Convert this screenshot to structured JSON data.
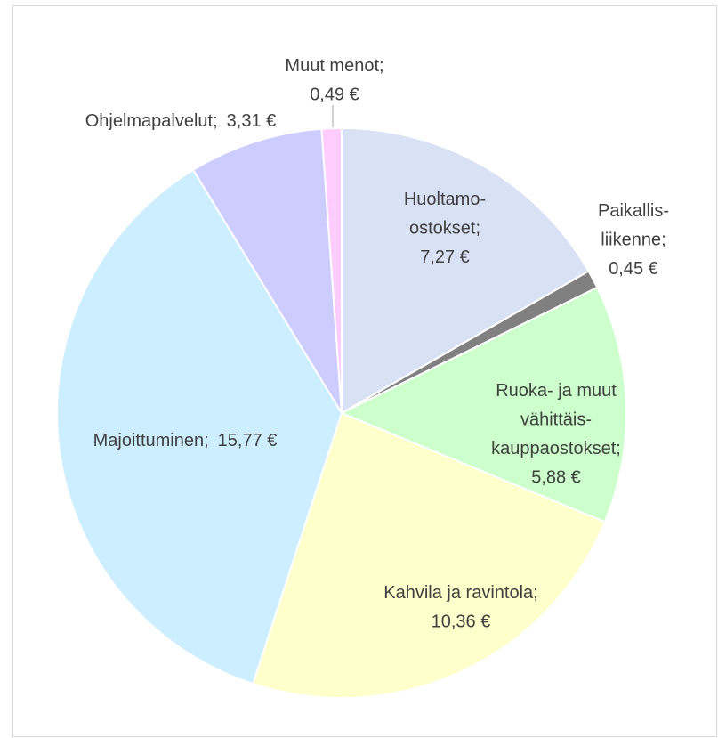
{
  "chart_data": {
    "type": "pie",
    "categories": [
      [
        "Huoltamo-",
        "ostokset;"
      ],
      [
        "Paikallis-",
        "liikenne;"
      ],
      [
        "Ruoka- ja muut",
        "vähittäis-",
        "kauppaostokset;"
      ],
      [
        "Kahvila ja ravintola;"
      ],
      [
        "Majoittuminen;"
      ],
      [
        "Ohjelmapalvelut;"
      ],
      [
        "Muut menot;"
      ]
    ],
    "values": [
      7.27,
      0.45,
      5.88,
      10.36,
      15.77,
      3.31,
      0.49
    ],
    "value_labels": [
      "7,27 €",
      "0,45 €",
      "5,88 €",
      "10,36 €",
      "15,77 €",
      "3,31 €",
      "0,49 €"
    ],
    "colors": [
      "#d9e1f4",
      "#808080",
      "#ccffcc",
      "#ffffcc",
      "#cceeff",
      "#ccccff",
      "#ffccff"
    ]
  }
}
